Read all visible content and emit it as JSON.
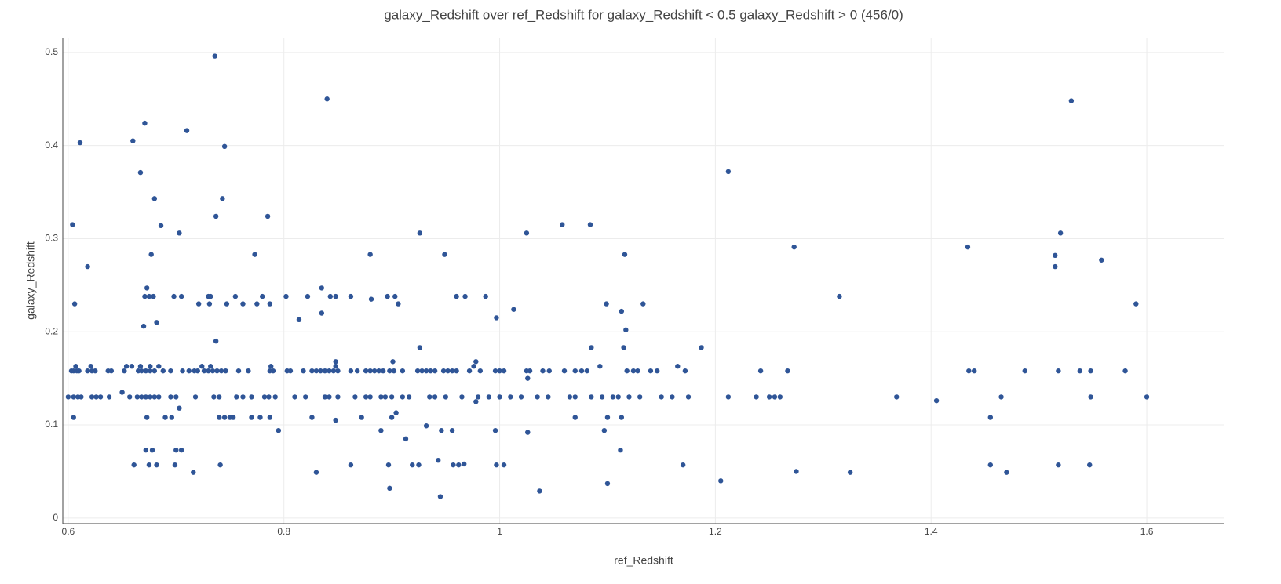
{
  "chart_data": {
    "type": "scatter",
    "title": "galaxy_Redshift over ref_Redshift for galaxy_Redshift < 0.5 galaxy_Redshift > 0  (456/0)",
    "xlabel": "ref_Redshift",
    "ylabel": "galaxy_Redshift",
    "color": "#2f5597",
    "grid": true,
    "xlim": [
      0.595,
      1.672
    ],
    "xticks": [
      0.6,
      0.8,
      1,
      1.2,
      1.4,
      1.6
    ],
    "ylim": [
      -0.006,
      0.515
    ],
    "yticks": [
      0,
      0.1,
      0.2,
      0.3,
      0.4,
      0.5
    ],
    "x": [
      0.604,
      0.606,
      0.618,
      0.611,
      0.66,
      0.667,
      0.671,
      0.67,
      0.673,
      0.677,
      0.68,
      0.682,
      0.686,
      0.703,
      0.71,
      0.736,
      0.737,
      0.737,
      0.745,
      0.743,
      0.773,
      0.785,
      0.84,
      0.835,
      0.835,
      0.814,
      0.88,
      0.881,
      0.926,
      0.926,
      0.949,
      1.025,
      1.058,
      1.084,
      1.116,
      1.013,
      0.997,
      1.133,
      1.099,
      1.113,
      1.117,
      1.085,
      1.115,
      1.093,
      0.672,
      0.678,
      0.661,
      0.675,
      0.682,
      0.699,
      0.7,
      0.705,
      0.716,
      0.741,
      0.83,
      0.862,
      0.897,
      0.898,
      0.919,
      0.925,
      0.943,
      0.945,
      0.957,
      0.962,
      0.967,
      0.997,
      1.004,
      1.037,
      1.1,
      0.946,
      0.956,
      0.932,
      0.913,
      0.89,
      0.904,
      0.996,
      1.026,
      1.097,
      1.112,
      0.795,
      0.605,
      0.673,
      0.69,
      0.696,
      0.74,
      0.745,
      0.75,
      0.753,
      0.77,
      0.778,
      0.787,
      0.826,
      0.848,
      0.872,
      0.9,
      1.07,
      1.1,
      1.113,
      0.607,
      0.621,
      0.654,
      0.659,
      0.667,
      0.676,
      0.684,
      0.724,
      0.732,
      0.788,
      0.848,
      0.848,
      0.901,
      0.976,
      0.978,
      0.671,
      0.675,
      0.679,
      0.698,
      0.705,
      0.73,
      0.732,
      0.755,
      0.78,
      0.802,
      0.822,
      0.843,
      0.848,
      0.862,
      0.896,
      0.903,
      0.96,
      0.968,
      0.987,
      0.721,
      0.731,
      0.747,
      0.762,
      0.775,
      0.787,
      0.906,
      0.603,
      0.605,
      0.608,
      0.61,
      0.618,
      0.622,
      0.625,
      0.637,
      0.64,
      0.652,
      0.665,
      0.668,
      0.672,
      0.676,
      0.68,
      0.688,
      0.695,
      0.706,
      0.712,
      0.717,
      0.72,
      0.726,
      0.73,
      0.734,
      0.738,
      0.742,
      0.746,
      0.758,
      0.767,
      0.787,
      0.79,
      0.803,
      0.806,
      0.818,
      0.826,
      0.83,
      0.834,
      0.838,
      0.842,
      0.846,
      0.85,
      0.862,
      0.868,
      0.876,
      0.88,
      0.884,
      0.888,
      0.892,
      0.898,
      0.902,
      0.91,
      0.924,
      0.928,
      0.932,
      0.936,
      0.94,
      0.948,
      0.952,
      0.956,
      0.96,
      0.972,
      0.982,
      0.996,
      1.0,
      1.004,
      1.025,
      1.028,
      1.04,
      1.046,
      1.06,
      1.07,
      1.076,
      1.081,
      1.118,
      1.124,
      1.128,
      1.14,
      1.146,
      0.6,
      0.605,
      0.609,
      0.612,
      0.622,
      0.626,
      0.63,
      0.638,
      0.657,
      0.664,
      0.668,
      0.672,
      0.676,
      0.68,
      0.684,
      0.695,
      0.7,
      0.718,
      0.735,
      0.74,
      0.756,
      0.762,
      0.77,
      0.782,
      0.786,
      0.792,
      0.81,
      0.82,
      0.838,
      0.842,
      0.85,
      0.866,
      0.876,
      0.88,
      0.89,
      0.894,
      0.9,
      0.91,
      0.916,
      0.935,
      0.94,
      0.95,
      0.965,
      0.98,
      0.99,
      1.0,
      1.01,
      1.02,
      1.035,
      1.045,
      1.065,
      1.07,
      1.085,
      1.095,
      1.105,
      1.11,
      1.12,
      1.13,
      1.15,
      1.16,
      0.65,
      0.978,
      0.703,
      1.026,
      1.53,
      1.52,
      1.515,
      1.515,
      1.558,
      1.434,
      1.59,
      1.58,
      1.548,
      1.538,
      1.518,
      1.487,
      1.44,
      1.435,
      1.6,
      1.548,
      1.465,
      1.518,
      1.547,
      1.455,
      1.455,
      1.47,
      1.405,
      1.368,
      1.315,
      1.325,
      1.275,
      1.273,
      1.267,
      1.242,
      1.26,
      1.255,
      1.25,
      1.238,
      1.212,
      1.212,
      1.205,
      1.187,
      1.165,
      1.172,
      1.175,
      1.17
    ],
    "values": [
      0.315,
      0.23,
      0.27,
      0.403,
      0.405,
      0.371,
      0.424,
      0.206,
      0.247,
      0.283,
      0.343,
      0.21,
      0.314,
      0.306,
      0.416,
      0.496,
      0.324,
      0.19,
      0.399,
      0.343,
      0.283,
      0.324,
      0.45,
      0.247,
      0.22,
      0.213,
      0.283,
      0.235,
      0.306,
      0.183,
      0.283,
      0.306,
      0.315,
      0.315,
      0.283,
      0.224,
      0.215,
      0.23,
      0.23,
      0.222,
      0.202,
      0.183,
      0.183,
      0.163,
      0.073,
      0.073,
      0.057,
      0.057,
      0.057,
      0.057,
      0.073,
      0.073,
      0.049,
      0.057,
      0.049,
      0.057,
      0.057,
      0.032,
      0.057,
      0.057,
      0.062,
      0.023,
      0.057,
      0.057,
      0.058,
      0.057,
      0.057,
      0.029,
      0.037,
      0.094,
      0.094,
      0.099,
      0.085,
      0.094,
      0.113,
      0.094,
      0.092,
      0.094,
      0.073,
      0.094,
      0.108,
      0.108,
      0.108,
      0.108,
      0.108,
      0.108,
      0.108,
      0.108,
      0.108,
      0.108,
      0.108,
      0.108,
      0.105,
      0.108,
      0.108,
      0.108,
      0.108,
      0.108,
      0.163,
      0.163,
      0.163,
      0.163,
      0.163,
      0.163,
      0.163,
      0.163,
      0.163,
      0.163,
      0.168,
      0.163,
      0.168,
      0.163,
      0.168,
      0.238,
      0.238,
      0.238,
      0.238,
      0.238,
      0.238,
      0.238,
      0.238,
      0.238,
      0.238,
      0.238,
      0.238,
      0.238,
      0.238,
      0.238,
      0.238,
      0.238,
      0.238,
      0.238,
      0.23,
      0.23,
      0.23,
      0.23,
      0.23,
      0.23,
      0.23,
      0.158,
      0.158,
      0.158,
      0.158,
      0.158,
      0.158,
      0.158,
      0.158,
      0.158,
      0.158,
      0.158,
      0.158,
      0.158,
      0.158,
      0.158,
      0.158,
      0.158,
      0.158,
      0.158,
      0.158,
      0.158,
      0.158,
      0.158,
      0.158,
      0.158,
      0.158,
      0.158,
      0.158,
      0.158,
      0.158,
      0.158,
      0.158,
      0.158,
      0.158,
      0.158,
      0.158,
      0.158,
      0.158,
      0.158,
      0.158,
      0.158,
      0.158,
      0.158,
      0.158,
      0.158,
      0.158,
      0.158,
      0.158,
      0.158,
      0.158,
      0.158,
      0.158,
      0.158,
      0.158,
      0.158,
      0.158,
      0.158,
      0.158,
      0.158,
      0.158,
      0.158,
      0.158,
      0.158,
      0.158,
      0.158,
      0.158,
      0.158,
      0.158,
      0.158,
      0.158,
      0.158,
      0.158,
      0.158,
      0.158,
      0.158,
      0.158,
      0.158,
      0.158,
      0.13,
      0.13,
      0.13,
      0.13,
      0.13,
      0.13,
      0.13,
      0.13,
      0.13,
      0.13,
      0.13,
      0.13,
      0.13,
      0.13,
      0.13,
      0.13,
      0.13,
      0.13,
      0.13,
      0.13,
      0.13,
      0.13,
      0.13,
      0.13,
      0.13,
      0.13,
      0.13,
      0.13,
      0.13,
      0.13,
      0.13,
      0.13,
      0.13,
      0.13,
      0.13,
      0.13,
      0.13,
      0.13,
      0.13,
      0.13,
      0.13,
      0.13,
      0.13,
      0.13,
      0.13,
      0.13,
      0.13,
      0.13,
      0.13,
      0.13,
      0.13,
      0.13,
      0.13,
      0.13,
      0.13,
      0.13,
      0.13,
      0.13,
      0.13,
      0.13,
      0.135,
      0.125,
      0.118,
      0.15,
      0.448,
      0.306,
      0.282,
      0.27,
      0.277,
      0.291,
      0.23,
      0.158,
      0.158,
      0.158,
      0.158,
      0.158,
      0.158,
      0.158,
      0.13,
      0.13,
      0.13,
      0.057,
      0.057,
      0.057,
      0.108,
      0.049,
      0.126,
      0.13,
      0.238,
      0.049,
      0.05,
      0.291,
      0.158,
      0.158,
      0.13,
      0.13,
      0.13,
      0.13,
      0.13,
      0.372,
      0.04,
      0.183,
      0.163,
      0.158,
      0.13,
      0.057
    ]
  }
}
